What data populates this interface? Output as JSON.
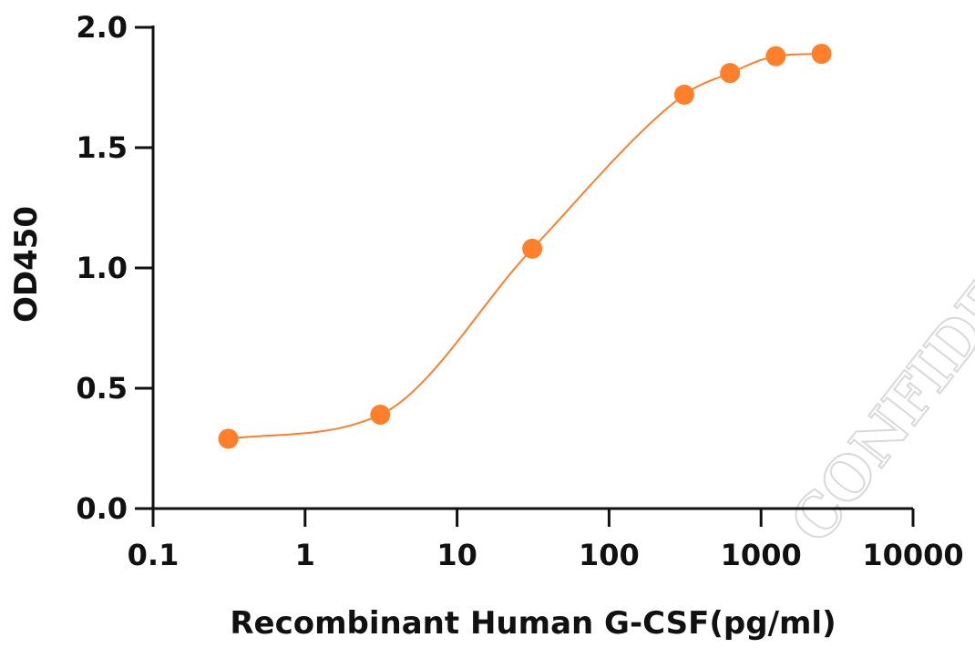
{
  "chart_data": {
    "type": "scatter",
    "xlabel": "Recombinant Human G-CSF(pg/ml)",
    "ylabel": "OD450",
    "x_scale": "log",
    "xlim": [
      0.1,
      10000
    ],
    "ylim": [
      0,
      2.0
    ],
    "x_ticks": [
      0.1,
      1,
      10,
      100,
      1000,
      10000
    ],
    "x_tick_labels": [
      "0.1",
      "1",
      "10",
      "100",
      "1000",
      "10000"
    ],
    "y_ticks": [
      0,
      0.5,
      1.0,
      1.5,
      2.0
    ],
    "y_tick_labels": [
      "0.0",
      "0.5",
      "1.0",
      "1.5",
      "2.0"
    ],
    "grid": false,
    "series": [
      {
        "color": "#ff7f2a",
        "x": [
          0.3125,
          3.125,
          31.25,
          312.5,
          625,
          1250,
          2500
        ],
        "y": [
          0.29,
          0.39,
          1.08,
          1.72,
          1.81,
          1.88,
          1.89
        ],
        "fit": "sigmoidal curve"
      }
    ],
    "watermark": "CONFIDENTIAL"
  }
}
